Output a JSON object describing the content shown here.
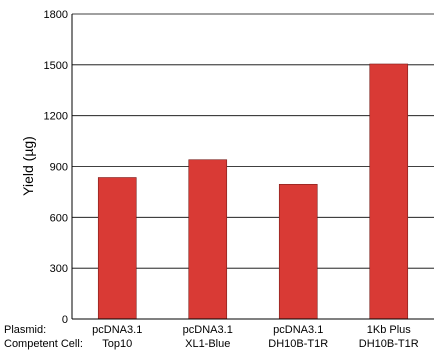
{
  "chart_data": {
    "type": "bar",
    "categories": [
      {
        "plasmid": "pcDNA3.1",
        "cell": "Top10"
      },
      {
        "plasmid": "pcDNA3.1",
        "cell": "XL1-Blue"
      },
      {
        "plasmid": "pcDNA3.1",
        "cell": "DH10B-T1R"
      },
      {
        "plasmid": "1Kb Plus",
        "cell": "DH10B-T1R"
      }
    ],
    "values": [
      835,
      940,
      795,
      1505
    ],
    "ylabel": "Yield (µg)",
    "ylim": [
      0,
      1800
    ],
    "yticks": [
      0,
      300,
      600,
      900,
      1200,
      1500,
      1800
    ],
    "grid": true,
    "row_labels": [
      "Plasmid:",
      "Competent Cell:"
    ],
    "colors": {
      "bar": "#d93a35",
      "bar_stroke": "#7a1d1a",
      "axis": "#000000",
      "grid": "#000000"
    }
  }
}
